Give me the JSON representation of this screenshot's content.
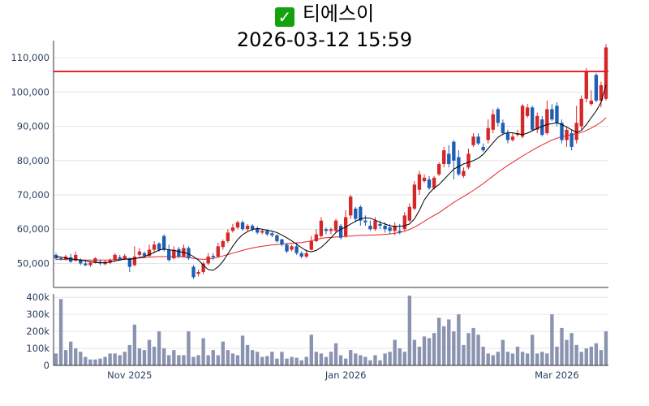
{
  "title": {
    "icon": "check-mark-icon",
    "name": "티에스이",
    "datetime": "2026-03-12 15:59"
  },
  "colors": {
    "up": "#d62728",
    "down": "#1f5fb3",
    "ma5": "#000000",
    "ma20": "#e3242b",
    "reference_line": "#e8232b",
    "volume": "#8a93b0"
  },
  "chart_data": [
    {
      "type": "candlestick",
      "title": "",
      "ylim": [
        43000,
        115000
      ],
      "yticks": [
        {
          "value": 50000,
          "label": "50,000"
        },
        {
          "value": 60000,
          "label": "60,000"
        },
        {
          "value": 70000,
          "label": "70,000"
        },
        {
          "value": 80000,
          "label": "80,000"
        },
        {
          "value": 90000,
          "label": "90,000"
        },
        {
          "value": 100000,
          "label": "100,000"
        },
        {
          "value": 110000,
          "label": "110,000"
        }
      ],
      "reference_line": 106000,
      "candles": [
        [
          52500,
          51500,
          53000,
          51000
        ],
        [
          51500,
          51200,
          52000,
          50800
        ],
        [
          51200,
          52000,
          52500,
          50800
        ],
        [
          51800,
          50500,
          52800,
          50200
        ],
        [
          50800,
          52500,
          53500,
          50500
        ],
        [
          51000,
          50000,
          51500,
          49500
        ],
        [
          50000,
          49500,
          50800,
          49200
        ],
        [
          49500,
          50200,
          50500,
          49000
        ],
        [
          50200,
          51500,
          51800,
          50000
        ],
        [
          50500,
          50000,
          51200,
          49500
        ],
        [
          49800,
          50500,
          51000,
          49500
        ],
        [
          50200,
          51000,
          51500,
          49800
        ],
        [
          51000,
          52500,
          53000,
          50800
        ],
        [
          51800,
          51200,
          52500,
          50800
        ],
        [
          51200,
          52200,
          52800,
          51000
        ],
        [
          51500,
          49000,
          51800,
          47500
        ],
        [
          49500,
          52000,
          55000,
          49200
        ],
        [
          52500,
          53500,
          54500,
          52000
        ],
        [
          53000,
          52200,
          53500,
          51500
        ],
        [
          52200,
          54000,
          55500,
          52000
        ],
        [
          54000,
          55500,
          56500,
          53000
        ],
        [
          55800,
          54000,
          56200,
          53500
        ],
        [
          58000,
          54000,
          58500,
          53500
        ],
        [
          54000,
          51000,
          55500,
          50500
        ],
        [
          51500,
          54000,
          55000,
          51200
        ],
        [
          54200,
          52000,
          54800,
          51500
        ],
        [
          52000,
          54500,
          55500,
          51800
        ],
        [
          54500,
          51500,
          55000,
          51000
        ],
        [
          49000,
          46000,
          49500,
          45500
        ],
        [
          47000,
          47500,
          48200,
          46200
        ],
        [
          47500,
          50000,
          50500,
          46800
        ],
        [
          50000,
          52000,
          53000,
          49500
        ],
        [
          52200,
          51800,
          53000,
          51000
        ],
        [
          52000,
          55000,
          56000,
          51800
        ],
        [
          54800,
          56500,
          57000,
          54000
        ],
        [
          56500,
          59000,
          60000,
          56000
        ],
        [
          59500,
          60500,
          61500,
          59000
        ],
        [
          60500,
          62000,
          62500,
          60000
        ],
        [
          62000,
          60000,
          62500,
          59500
        ],
        [
          60000,
          61000,
          61500,
          59500
        ],
        [
          61000,
          60000,
          61500,
          59300
        ],
        [
          60200,
          59000,
          60800,
          58500
        ],
        [
          59000,
          59500,
          60000,
          58500
        ],
        [
          59500,
          58500,
          60000,
          58000
        ],
        [
          58800,
          58200,
          59300,
          57700
        ],
        [
          58200,
          56500,
          58500,
          56000
        ],
        [
          57000,
          55500,
          57200,
          55000
        ],
        [
          55500,
          53500,
          56000,
          53000
        ],
        [
          54000,
          55000,
          55500,
          53500
        ],
        [
          55000,
          53000,
          56000,
          52500
        ],
        [
          53000,
          52000,
          53500,
          51500
        ],
        [
          52000,
          53000,
          54000,
          51500
        ],
        [
          54000,
          56500,
          58000,
          53800
        ],
        [
          56500,
          58500,
          60000,
          56200
        ],
        [
          58000,
          62500,
          63500,
          57500
        ],
        [
          60000,
          59500,
          60500,
          58500
        ],
        [
          59500,
          60000,
          60500,
          58500
        ],
        [
          59500,
          62500,
          63000,
          59000
        ],
        [
          61000,
          57500,
          61500,
          57000
        ],
        [
          58000,
          63500,
          65500,
          57500
        ],
        [
          64000,
          69500,
          70000,
          63000
        ],
        [
          66000,
          63000,
          66500,
          62000
        ],
        [
          66500,
          62500,
          67000,
          61000
        ],
        [
          62500,
          62000,
          64000,
          61000
        ],
        [
          61000,
          60000,
          62500,
          59500
        ],
        [
          60000,
          62500,
          63500,
          59500
        ],
        [
          61500,
          61000,
          62500,
          60000
        ],
        [
          61000,
          60000,
          62000,
          59000
        ],
        [
          60500,
          59500,
          61500,
          58500
        ],
        [
          59500,
          61000,
          62000,
          58200
        ],
        [
          59500,
          59000,
          61500,
          58500
        ],
        [
          60000,
          64000,
          65000,
          59500
        ],
        [
          62500,
          66500,
          67500,
          62000
        ],
        [
          66000,
          73000,
          74000,
          65500
        ],
        [
          71500,
          76000,
          77000,
          70000
        ],
        [
          74000,
          75000,
          76000,
          73500
        ],
        [
          74500,
          72000,
          75500,
          71500
        ],
        [
          72000,
          75000,
          75500,
          71500
        ],
        [
          76000,
          79000,
          79500,
          75500
        ],
        [
          79000,
          83000,
          84000,
          78000
        ],
        [
          82000,
          79000,
          84500,
          78000
        ],
        [
          85500,
          80000,
          86000,
          74500
        ],
        [
          81000,
          76000,
          83000,
          75500
        ],
        [
          75500,
          77000,
          78000,
          75000
        ],
        [
          78000,
          82000,
          83500,
          77500
        ],
        [
          84500,
          87000,
          88000,
          84000
        ],
        [
          87000,
          85000,
          88000,
          84500
        ],
        [
          84000,
          83000,
          85000,
          82500
        ],
        [
          86000,
          89500,
          92000,
          85000
        ],
        [
          89000,
          93500,
          95000,
          88000
        ],
        [
          95000,
          91000,
          95500,
          90000
        ],
        [
          91000,
          88000,
          92000,
          87500
        ],
        [
          88000,
          86000,
          89000,
          85000
        ],
        [
          86000,
          87000,
          88000,
          85500
        ],
        [
          87500,
          88000,
          89000,
          87000
        ],
        [
          87000,
          96000,
          96500,
          86500
        ],
        [
          93000,
          95500,
          96500,
          92500
        ],
        [
          95500,
          89000,
          96000,
          88500
        ],
        [
          89000,
          93000,
          94000,
          88000
        ],
        [
          92000,
          87500,
          93000,
          87000
        ],
        [
          88000,
          95000,
          97500,
          87500
        ],
        [
          95000,
          92000,
          96500,
          91500
        ],
        [
          96000,
          91000,
          97000,
          90000
        ],
        [
          91000,
          86000,
          92000,
          85000
        ],
        [
          86000,
          89000,
          90000,
          84000
        ],
        [
          88000,
          84000,
          89000,
          83000
        ],
        [
          86000,
          91000,
          96000,
          85000
        ],
        [
          90000,
          98000,
          99000,
          89000
        ],
        [
          98000,
          106000,
          107000,
          97000
        ],
        [
          96500,
          97500,
          100500,
          96000
        ],
        [
          105000,
          97500,
          105500,
          97000
        ],
        [
          97500,
          102000,
          103000,
          95500
        ],
        [
          98000,
          113000,
          114000,
          97500
        ]
      ],
      "ma5": [
        52000,
        51800,
        51600,
        51300,
        51200,
        51000,
        50800,
        50500,
        50300,
        50200,
        50200,
        50400,
        50700,
        51000,
        51300,
        51200,
        51400,
        51700,
        52000,
        52600,
        53200,
        53900,
        54200,
        54000,
        53800,
        53500,
        53200,
        52800,
        52000,
        51000,
        49500,
        48200,
        48000,
        49000,
        50600,
        52800,
        55000,
        57000,
        58400,
        59300,
        59900,
        60200,
        60000,
        59700,
        59400,
        59000,
        58300,
        57500,
        56600,
        55600,
        54600,
        53700,
        53400,
        53800,
        54700,
        56000,
        57500,
        59000,
        60000,
        60600,
        61500,
        62300,
        63000,
        63300,
        63200,
        62600,
        62000,
        61500,
        61000,
        60800,
        60800,
        61000,
        61500,
        63000,
        65500,
        68500,
        70500,
        72000,
        73000,
        74500,
        76000,
        77500,
        78300,
        79000,
        79500,
        80000,
        80700,
        81800,
        83500,
        85200,
        86800,
        87700,
        88200,
        88100,
        87800,
        87600,
        88000,
        88700,
        89400,
        90000,
        90500,
        90800,
        91000,
        90500,
        89800,
        89000,
        88200,
        88800,
        90500,
        92500,
        94500,
        97000,
        102000
      ],
      "ma20": [
        51200,
        51200,
        51150,
        51100,
        51100,
        51050,
        51000,
        51000,
        51000,
        51000,
        51000,
        51000,
        51100,
        51200,
        51300,
        51400,
        51500,
        51600,
        51700,
        51800,
        51900,
        52000,
        52000,
        52000,
        52000,
        52000,
        51900,
        51700,
        51500,
        51300,
        51200,
        51300,
        51500,
        51800,
        52200,
        52600,
        53000,
        53400,
        53800,
        54200,
        54500,
        54800,
        55000,
        55200,
        55400,
        55500,
        55600,
        55800,
        55900,
        56000,
        56100,
        56300,
        56600,
        57000,
        57300,
        57500,
        57600,
        57700,
        57800,
        57900,
        58000,
        58100,
        58200,
        58200,
        58300,
        58300,
        58400,
        58500,
        58600,
        58800,
        59000,
        59400,
        59900,
        60600,
        61400,
        62300,
        63200,
        64000,
        64800,
        65800,
        66800,
        67800,
        68700,
        69500,
        70400,
        71300,
        72300,
        73300,
        74400,
        75500,
        76600,
        77600,
        78600,
        79500,
        80400,
        81300,
        82200,
        83000,
        83800,
        84600,
        85300,
        86000,
        86500,
        87000,
        87300,
        87600,
        87800,
        88200,
        88800,
        89500,
        90300,
        91200,
        92500
      ]
    },
    {
      "type": "bar",
      "title": "",
      "ylim": [
        0,
        420000
      ],
      "yticks": [
        {
          "value": 0,
          "label": "0"
        },
        {
          "value": 100000,
          "label": "100k"
        },
        {
          "value": 200000,
          "label": "200k"
        },
        {
          "value": 300000,
          "label": "300k"
        },
        {
          "value": 400000,
          "label": "400k"
        }
      ],
      "x_ticks": [
        {
          "index": 15,
          "label": "Nov 2025"
        },
        {
          "index": 59,
          "label": "Jan 2026"
        },
        {
          "index": 102,
          "label": "Mar 2026"
        }
      ],
      "values": [
        70000,
        390000,
        90000,
        140000,
        100000,
        80000,
        50000,
        35000,
        35000,
        40000,
        50000,
        70000,
        70000,
        60000,
        80000,
        120000,
        240000,
        100000,
        90000,
        150000,
        110000,
        200000,
        100000,
        60000,
        90000,
        60000,
        60000,
        200000,
        50000,
        60000,
        160000,
        60000,
        90000,
        60000,
        140000,
        90000,
        70000,
        60000,
        175000,
        120000,
        90000,
        80000,
        50000,
        55000,
        80000,
        40000,
        80000,
        40000,
        50000,
        45000,
        30000,
        50000,
        180000,
        80000,
        70000,
        50000,
        80000,
        130000,
        60000,
        40000,
        90000,
        70000,
        60000,
        50000,
        30000,
        60000,
        30000,
        70000,
        80000,
        150000,
        100000,
        80000,
        410000,
        150000,
        110000,
        170000,
        160000,
        190000,
        280000,
        230000,
        270000,
        200000,
        300000,
        120000,
        190000,
        220000,
        180000,
        110000,
        70000,
        60000,
        80000,
        150000,
        80000,
        70000,
        110000,
        80000,
        70000,
        180000,
        70000,
        80000,
        70000,
        300000,
        110000,
        220000,
        150000,
        190000,
        120000,
        80000,
        100000,
        110000,
        130000,
        90000,
        200000
      ]
    }
  ]
}
